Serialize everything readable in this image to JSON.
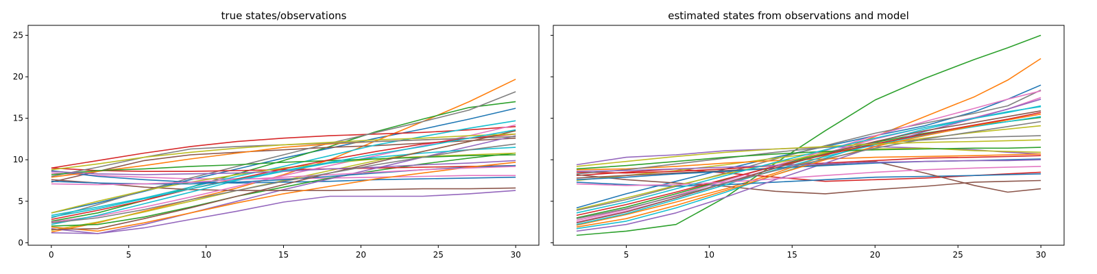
{
  "chart_data": [
    {
      "type": "line",
      "title": "true states/observations",
      "xlabel": "",
      "ylabel": "",
      "xlim": [
        -1.5,
        31.5
      ],
      "ylim": [
        -0.3,
        26.2
      ],
      "xticks": [
        0,
        5,
        10,
        15,
        20,
        25,
        30
      ],
      "yticks": [
        0,
        5,
        10,
        15,
        20,
        25
      ],
      "grid": false,
      "x": [
        0,
        3,
        6,
        9,
        12,
        15,
        18,
        21,
        24,
        27,
        30
      ],
      "series": [
        {
          "values": [
            3.6,
            4.8,
            6.2,
            7.6,
            8.9,
            10.2,
            11.4,
            12.6,
            13.7,
            14.9,
            16.2
          ]
        },
        {
          "values": [
            1.3,
            2.4,
            3.8,
            5.2,
            6.6,
            8.2,
            10.0,
            12.3,
            14.6,
            17.0,
            19.7
          ]
        },
        {
          "values": [
            2.6,
            3.6,
            5.1,
            6.7,
            8.3,
            9.9,
            11.6,
            13.4,
            14.9,
            16.3,
            17.0
          ]
        },
        {
          "values": [
            9.0,
            9.9,
            10.8,
            11.6,
            12.2,
            12.6,
            12.9,
            13.1,
            13.3,
            13.6,
            14.0
          ]
        },
        {
          "values": [
            1.7,
            1.1,
            1.8,
            2.8,
            3.8,
            4.9,
            5.6,
            5.6,
            5.6,
            5.9,
            6.3
          ]
        },
        {
          "values": [
            7.3,
            8.6,
            9.9,
            10.6,
            10.9,
            11.2,
            11.5,
            11.7,
            12.0,
            12.3,
            12.6
          ]
        },
        {
          "values": [
            8.4,
            8.1,
            7.9,
            7.7,
            7.7,
            7.7,
            7.8,
            7.9,
            8.0,
            8.1,
            8.1
          ]
        },
        {
          "values": [
            3.0,
            4.6,
            6.3,
            7.8,
            9.2,
            10.6,
            12.0,
            13.3,
            14.6,
            16.0,
            18.2
          ]
        },
        {
          "values": [
            1.5,
            2.5,
            3.7,
            5.0,
            6.3,
            7.5,
            8.7,
            9.9,
            11.0,
            12.2,
            13.5
          ]
        },
        {
          "values": [
            3.3,
            4.3,
            5.4,
            6.7,
            8.0,
            9.2,
            10.5,
            11.8,
            12.8,
            13.8,
            14.7
          ]
        },
        {
          "values": [
            8.7,
            8.0,
            7.6,
            7.3,
            7.2,
            7.3,
            7.4,
            7.6,
            7.7,
            7.8,
            7.9
          ]
        },
        {
          "values": [
            7.9,
            8.6,
            9.3,
            10.1,
            10.8,
            11.5,
            11.9,
            12.2,
            12.4,
            12.6,
            12.8
          ]
        },
        {
          "values": [
            2.0,
            2.2,
            3.1,
            4.3,
            5.6,
            6.7,
            7.8,
            8.7,
            9.5,
            10.2,
            10.8
          ]
        },
        {
          "values": [
            9.0,
            8.7,
            8.6,
            8.6,
            8.7,
            8.8,
            8.9,
            9.0,
            9.1,
            9.2,
            9.3
          ]
        },
        {
          "values": [
            1.2,
            1.1,
            2.2,
            3.6,
            5.0,
            6.4,
            7.7,
            9.0,
            10.3,
            11.6,
            12.9
          ]
        },
        {
          "values": [
            7.6,
            7.2,
            6.7,
            6.4,
            6.3,
            6.3,
            6.3,
            6.4,
            6.5,
            6.5,
            6.6
          ]
        },
        {
          "values": [
            2.5,
            3.2,
            4.3,
            5.5,
            6.8,
            8.1,
            9.3,
            10.5,
            11.7,
            12.9,
            14.2
          ]
        },
        {
          "values": [
            8.0,
            9.1,
            10.3,
            11.3,
            11.6,
            11.8,
            12.0,
            12.2,
            12.4,
            12.6,
            12.8
          ]
        },
        {
          "values": [
            3.6,
            5.0,
            6.3,
            7.3,
            8.2,
            9.0,
            9.6,
            10.1,
            10.4,
            10.6,
            10.8
          ]
        },
        {
          "values": [
            2.2,
            3.3,
            4.7,
            6.1,
            7.5,
            8.6,
            9.6,
            10.3,
            10.8,
            11.2,
            11.5
          ]
        },
        {
          "values": [
            7.4,
            7.2,
            7.1,
            7.1,
            7.3,
            7.6,
            8.0,
            8.4,
            8.8,
            9.1,
            9.3
          ]
        },
        {
          "values": [
            1.9,
            1.4,
            2.4,
            3.6,
            4.8,
            5.9,
            6.8,
            7.7,
            8.4,
            9.1,
            9.7
          ]
        },
        {
          "values": [
            8.2,
            8.7,
            8.9,
            9.2,
            9.4,
            9.7,
            9.9,
            10.1,
            10.3,
            10.5,
            10.6
          ]
        },
        {
          "values": [
            2.8,
            3.9,
            5.1,
            6.5,
            7.7,
            8.9,
            10.0,
            11.0,
            11.9,
            12.6,
            13.1
          ]
        },
        {
          "values": [
            8.6,
            8.3,
            8.2,
            8.3,
            8.4,
            8.6,
            8.9,
            9.1,
            9.4,
            9.6,
            9.9
          ]
        },
        {
          "values": [
            1.6,
            1.7,
            2.9,
            4.2,
            5.6,
            7.0,
            8.4,
            9.7,
            11.0,
            12.2,
            13.5
          ]
        },
        {
          "values": [
            7.1,
            7.0,
            7.1,
            7.3,
            7.6,
            7.9,
            8.2,
            8.5,
            8.8,
            9.0,
            9.2
          ]
        },
        {
          "values": [
            2.4,
            3.0,
            4.0,
            5.2,
            6.3,
            7.4,
            8.4,
            9.4,
            10.3,
            11.2,
            11.9
          ]
        },
        {
          "values": [
            8.8,
            9.5,
            10.3,
            10.9,
            11.4,
            11.8,
            12.1,
            12.4,
            12.6,
            12.9,
            13.1
          ]
        },
        {
          "values": [
            3.1,
            4.1,
            5.3,
            6.5,
            7.6,
            8.7,
            9.7,
            10.7,
            11.6,
            12.6,
            13.6
          ]
        }
      ]
    },
    {
      "type": "line",
      "title": "estimated states from observations and model",
      "xlabel": "",
      "ylabel": "",
      "xlim": [
        0.6,
        31.4
      ],
      "ylim": [
        -0.3,
        26.2
      ],
      "xticks": [
        5,
        10,
        15,
        20,
        25,
        30
      ],
      "yticks": [
        0,
        5,
        10,
        15,
        20,
        25
      ],
      "grid": false,
      "x": [
        2,
        5,
        8,
        11,
        14,
        17,
        20,
        23,
        26,
        28,
        30
      ],
      "series": [
        {
          "values": [
            4.2,
            5.9,
            7.4,
            8.9,
            10.3,
            11.6,
            12.9,
            14.1,
            15.8,
            17.3,
            19.0
          ]
        },
        {
          "values": [
            2.1,
            3.4,
            4.9,
            6.5,
            8.4,
            10.5,
            12.8,
            15.2,
            17.6,
            19.6,
            22.2
          ]
        },
        {
          "values": [
            0.9,
            1.4,
            2.2,
            5.5,
            9.6,
            13.5,
            17.2,
            19.8,
            22.1,
            23.5,
            25.0
          ]
        },
        {
          "values": [
            8.1,
            8.5,
            8.9,
            8.4,
            7.9,
            7.4,
            7.6,
            7.8,
            8.1,
            8.3,
            8.5
          ]
        },
        {
          "values": [
            9.4,
            10.3,
            10.6,
            11.1,
            11.3,
            11.5,
            11.6,
            11.4,
            11.2,
            10.9,
            10.7
          ]
        },
        {
          "values": [
            8.2,
            7.6,
            7.2,
            6.8,
            6.2,
            5.9,
            6.4,
            6.8,
            7.3,
            7.4,
            7.5
          ]
        },
        {
          "values": [
            2.5,
            3.8,
            5.4,
            7.3,
            9.0,
            10.8,
            12.5,
            13.9,
            15.1,
            16.1,
            17.5
          ]
        },
        {
          "values": [
            3.9,
            5.2,
            6.8,
            8.4,
            10.1,
            11.7,
            13.2,
            14.4,
            15.6,
            16.5,
            18.4
          ]
        },
        {
          "values": [
            7.5,
            8.1,
            8.7,
            9.4,
            10.2,
            10.9,
            11.3,
            11.4,
            11.1,
            11.0,
            10.9
          ]
        },
        {
          "values": [
            1.7,
            2.6,
            4.2,
            6.1,
            8.2,
            10.2,
            12.1,
            13.7,
            15.0,
            15.8,
            16.4
          ]
        },
        {
          "values": [
            7.3,
            7.0,
            6.8,
            7.0,
            7.3,
            7.6,
            7.9,
            8.0,
            8.1,
            8.2,
            8.3
          ]
        },
        {
          "values": [
            8.8,
            8.9,
            9.2,
            9.6,
            9.9,
            10.1,
            10.3,
            10.4,
            10.5,
            10.6,
            10.7
          ]
        },
        {
          "values": [
            3.0,
            4.3,
            5.9,
            7.6,
            9.3,
            10.8,
            12.1,
            13.2,
            14.1,
            14.6,
            15.1
          ]
        },
        {
          "values": [
            8.5,
            8.4,
            8.6,
            8.9,
            9.3,
            9.6,
            9.9,
            10.2,
            10.3,
            10.4,
            10.5
          ]
        },
        {
          "values": [
            1.4,
            2.2,
            3.6,
            5.5,
            7.6,
            9.6,
            11.6,
            13.4,
            15.0,
            16.1,
            17.3
          ]
        },
        {
          "values": [
            7.8,
            8.1,
            8.4,
            8.7,
            9.0,
            9.4,
            9.8,
            8.4,
            6.9,
            6.1,
            6.5
          ]
        },
        {
          "values": [
            2.7,
            4.0,
            5.7,
            7.5,
            9.3,
            11.1,
            12.9,
            14.6,
            16.2,
            17.3,
            18.3
          ]
        },
        {
          "values": [
            8.3,
            8.8,
            9.5,
            10.2,
            10.9,
            11.5,
            12.0,
            12.4,
            12.7,
            12.8,
            12.9
          ]
        },
        {
          "values": [
            4.0,
            5.4,
            6.9,
            8.3,
            9.6,
            10.8,
            11.8,
            12.6,
            13.3,
            13.7,
            14.1
          ]
        },
        {
          "values": [
            2.2,
            3.5,
            5.2,
            7.0,
            8.8,
            10.4,
            11.8,
            13.0,
            14.0,
            14.6,
            15.2
          ]
        },
        {
          "values": [
            7.6,
            7.9,
            8.3,
            8.6,
            9.0,
            9.3,
            9.6,
            9.8,
            9.9,
            10.0,
            10.1
          ]
        },
        {
          "values": [
            1.9,
            2.9,
            4.5,
            6.3,
            8.2,
            10.0,
            11.6,
            12.9,
            14.1,
            14.8,
            15.5
          ]
        },
        {
          "values": [
            8.9,
            9.3,
            9.8,
            10.3,
            10.7,
            11.0,
            11.2,
            11.3,
            11.4,
            11.4,
            11.5
          ]
        },
        {
          "values": [
            3.3,
            4.6,
            6.1,
            7.7,
            9.2,
            10.6,
            11.9,
            13.1,
            14.2,
            14.9,
            15.7
          ]
        },
        {
          "values": [
            8.6,
            8.7,
            8.9,
            9.1,
            9.3,
            9.5,
            9.7,
            9.8,
            9.9,
            9.9,
            10.0
          ]
        },
        {
          "values": [
            2.4,
            3.7,
            5.4,
            7.2,
            9.0,
            10.7,
            12.2,
            13.5,
            14.5,
            15.2,
            15.9
          ]
        },
        {
          "values": [
            7.1,
            6.9,
            7.0,
            7.3,
            7.7,
            8.1,
            8.5,
            8.8,
            9.0,
            9.1,
            9.2
          ]
        },
        {
          "values": [
            2.9,
            4.1,
            5.6,
            7.2,
            8.7,
            10.1,
            11.4,
            12.5,
            13.4,
            14.0,
            14.6
          ]
        },
        {
          "values": [
            9.2,
            9.8,
            10.4,
            10.9,
            11.3,
            11.6,
            11.9,
            12.1,
            12.2,
            12.3,
            12.4
          ]
        },
        {
          "values": [
            3.6,
            4.9,
            6.5,
            8.1,
            9.7,
            11.2,
            12.6,
            13.9,
            15.0,
            15.7,
            16.5
          ]
        }
      ]
    }
  ],
  "colors": [
    "#1f77b4",
    "#ff7f0e",
    "#2ca02c",
    "#d62728",
    "#9467bd",
    "#8c564b",
    "#e377c2",
    "#7f7f7f",
    "#bcbd22",
    "#17becf"
  ]
}
